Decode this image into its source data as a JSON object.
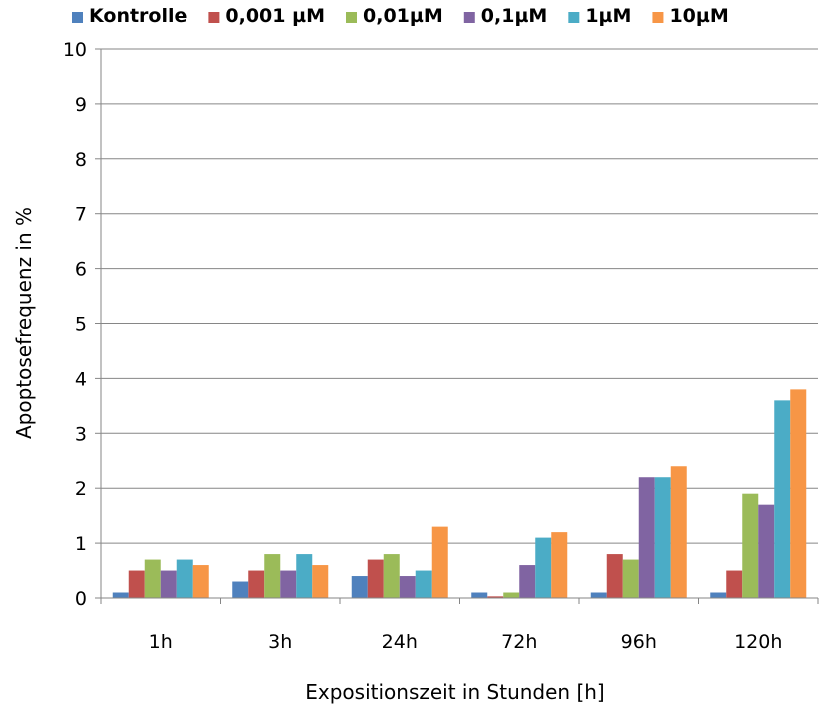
{
  "chart_data": {
    "type": "bar",
    "categories": [
      "1h",
      "3h",
      "24h",
      "72h",
      "96h",
      "120h"
    ],
    "series": [
      {
        "name": "Kontrolle",
        "color": "#4F81BD",
        "values": [
          0.1,
          0.3,
          0.4,
          0.1,
          0.1,
          0.1
        ]
      },
      {
        "name": "0,001 µM",
        "color": "#C0504D",
        "values": [
          0.5,
          0.5,
          0.7,
          0.03,
          0.8,
          0.5
        ]
      },
      {
        "name": "0,01µM",
        "color": "#9BBB59",
        "values": [
          0.7,
          0.8,
          0.8,
          0.1,
          0.7,
          1.9
        ]
      },
      {
        "name": "0,1µM",
        "color": "#8064A2",
        "values": [
          0.5,
          0.5,
          0.4,
          0.6,
          2.2,
          1.7
        ]
      },
      {
        "name": "1µM",
        "color": "#4BACC6",
        "values": [
          0.7,
          0.8,
          0.5,
          1.1,
          2.2,
          3.6
        ]
      },
      {
        "name": "10µM",
        "color": "#F79646",
        "values": [
          0.6,
          0.6,
          1.3,
          1.2,
          2.4,
          3.8
        ]
      }
    ],
    "title": "",
    "xlabel": "Expositionszeit in Stunden [h]",
    "ylabel": "Apoptosefrequenz in %",
    "ylim": [
      0,
      10
    ],
    "yticks": [
      "0",
      "1",
      "2",
      "3",
      "4",
      "5",
      "6",
      "7",
      "8",
      "9",
      "10"
    ],
    "grid": true,
    "legend_position": "top"
  }
}
